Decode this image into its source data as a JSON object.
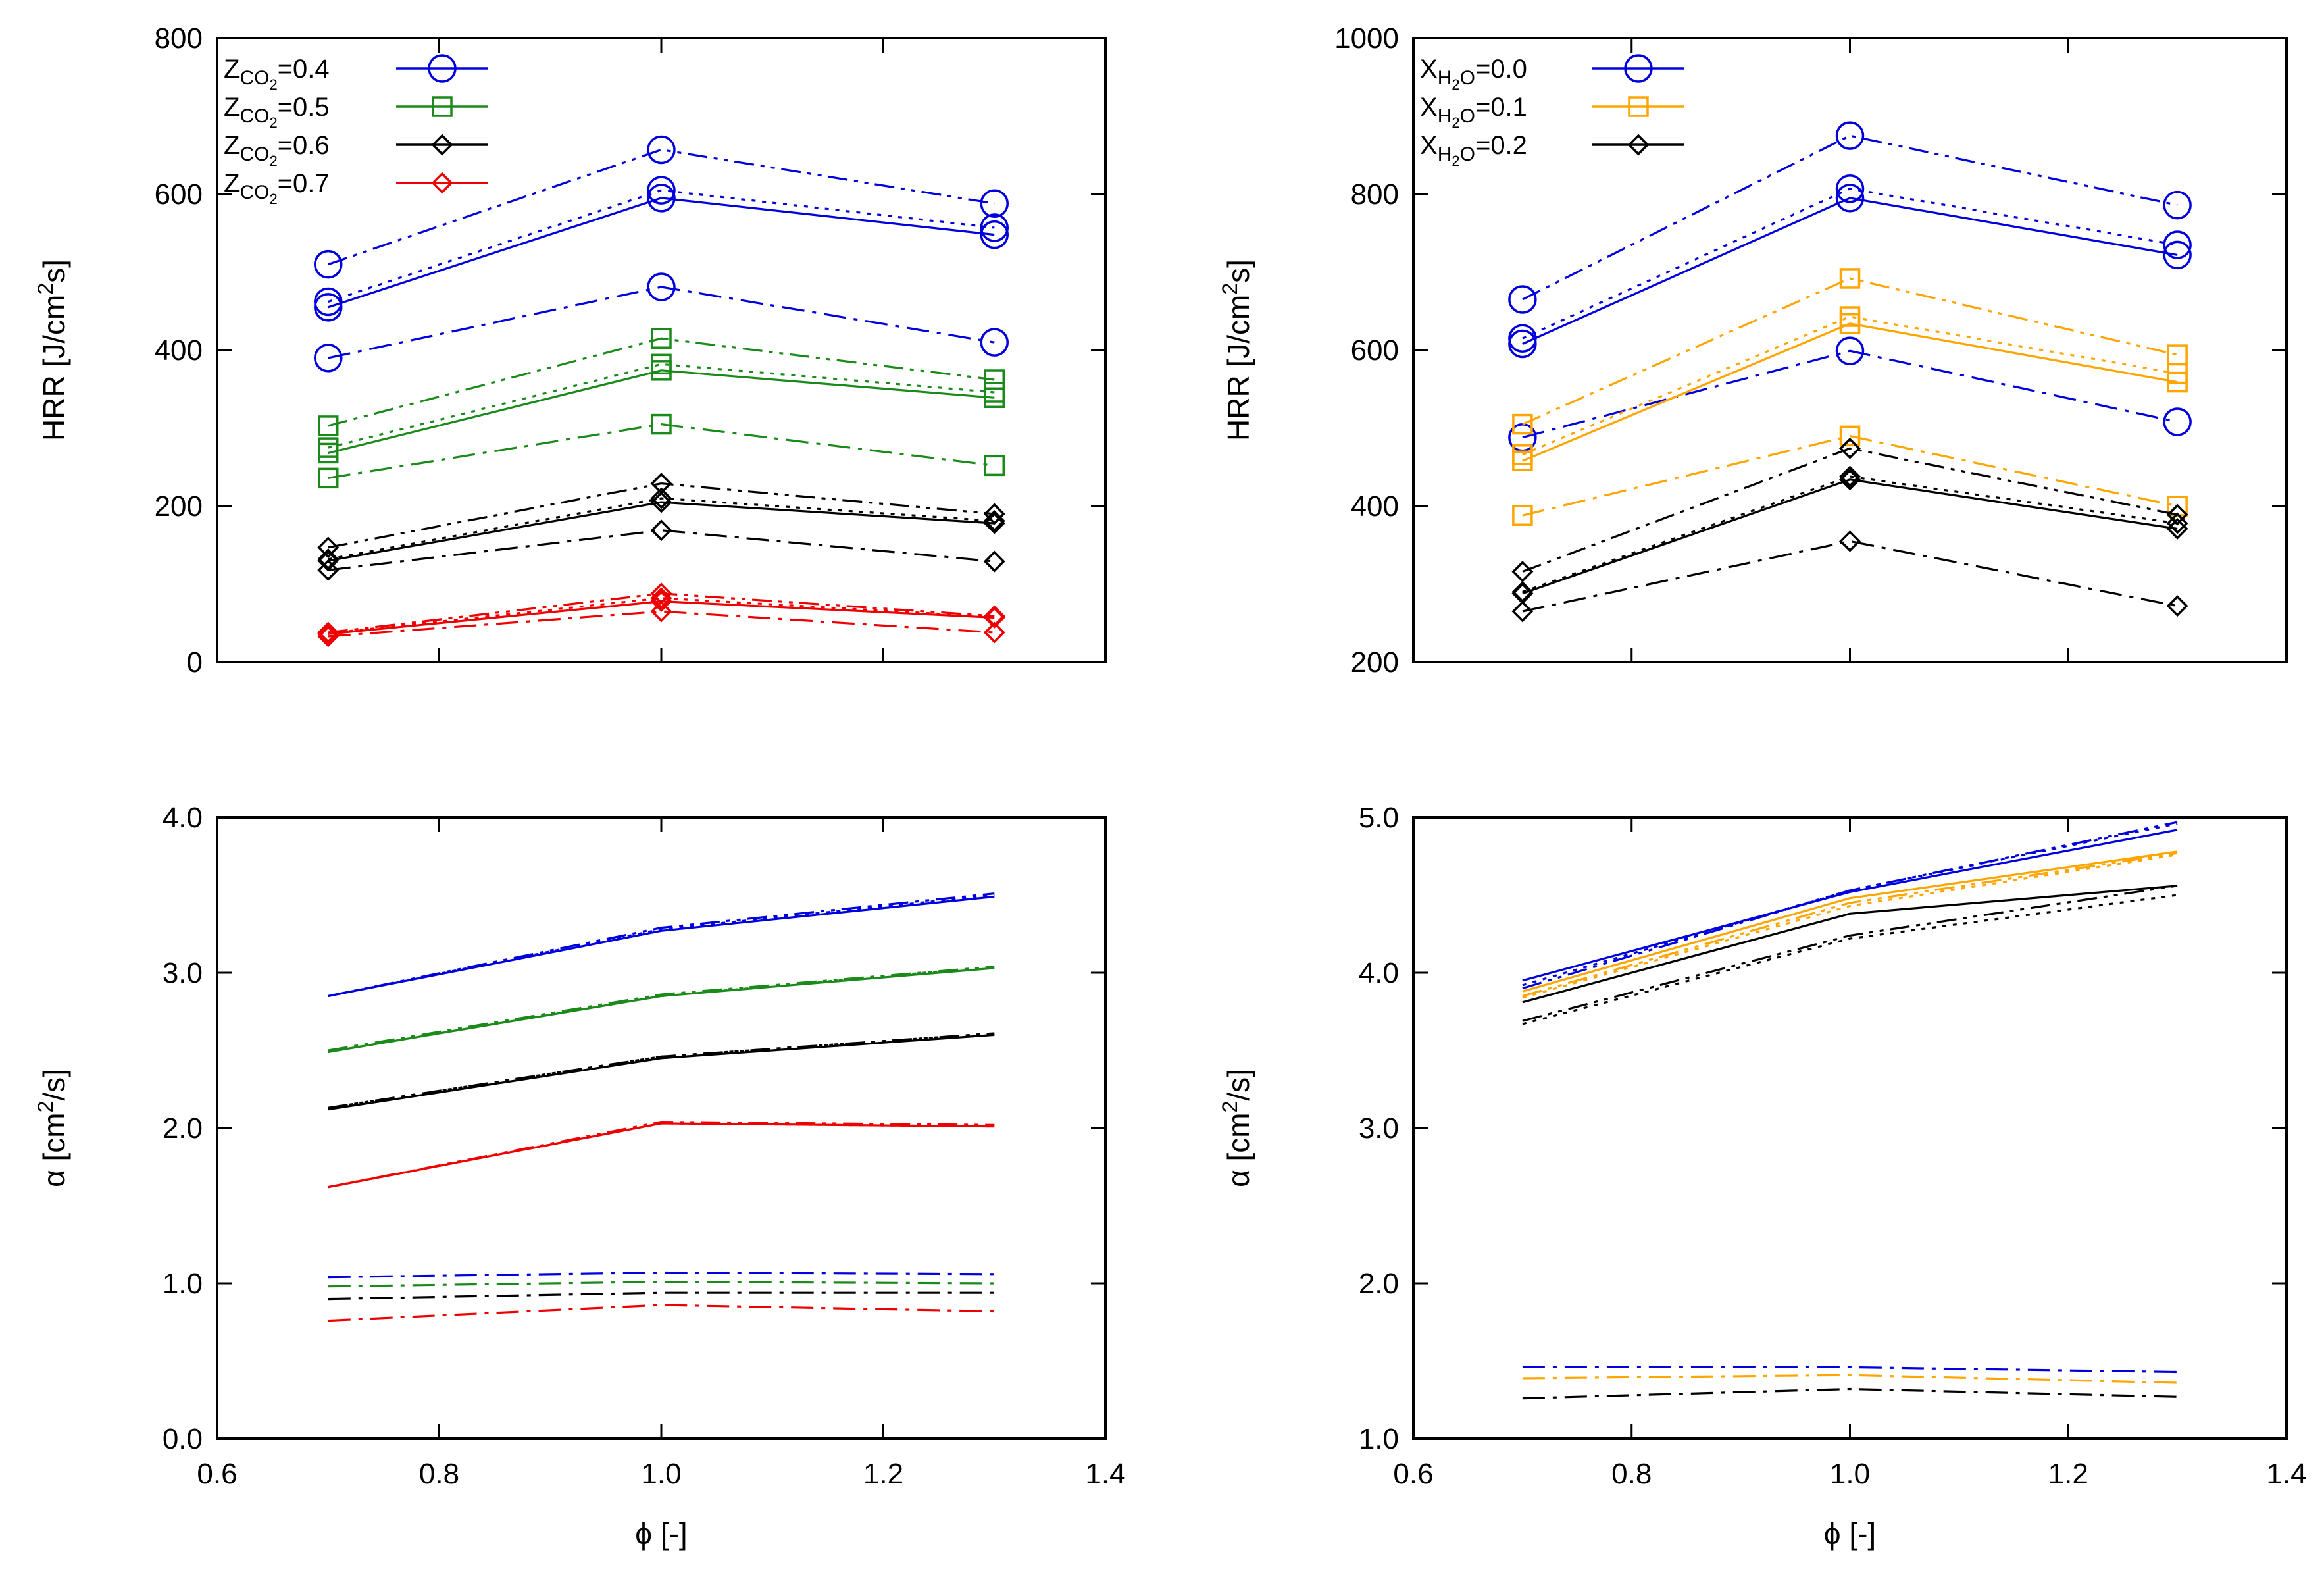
{
  "colors": {
    "blue": "#0000dd",
    "green": "#1a8a1a",
    "black": "#000000",
    "red": "#ee0000",
    "orange": "#ffa500"
  },
  "chart_data": [
    {
      "type": "line",
      "id": "top-left",
      "xlabel": "",
      "ylabel": "HRR [J/cm²s]",
      "ylabel_parts": {
        "base": "HRR [J/cm",
        "sup": "2",
        "tail": "s]"
      },
      "xlim": [
        0.6,
        1.4
      ],
      "ylim": [
        0,
        800
      ],
      "xticks": [
        "0.6",
        "0.8",
        "1.0",
        "1.2",
        "1.4"
      ],
      "yticks": [
        "0",
        "200",
        "400",
        "600",
        "800"
      ],
      "show_x_tick_labels": false,
      "legend": [
        {
          "label": "Z_CO2=0.4",
          "pre": "Z",
          "sub": "CO",
          "subsub": "2",
          "post": "=0.4",
          "color": "blue",
          "marker": "circle"
        },
        {
          "label": "Z_CO2=0.5",
          "pre": "Z",
          "sub": "CO",
          "subsub": "2",
          "post": "=0.5",
          "color": "green",
          "marker": "square"
        },
        {
          "label": "Z_CO2=0.6",
          "pre": "Z",
          "sub": "CO",
          "subsub": "2",
          "post": "=0.6",
          "color": "black",
          "marker": "diamond"
        },
        {
          "label": "Z_CO2=0.7",
          "pre": "Z",
          "sub": "CO",
          "subsub": "2",
          "post": "=0.7",
          "color": "red",
          "marker": "diamond"
        }
      ],
      "x": [
        0.7,
        1.0,
        1.3
      ],
      "series": [
        {
          "name": "Z_CO2=0.4 a",
          "color": "blue",
          "dash": "solid",
          "marker": "circle",
          "values": [
            455,
            595,
            548
          ]
        },
        {
          "name": "Z_CO2=0.4 b",
          "color": "blue",
          "dash": "dot",
          "marker": "circle",
          "values": [
            462,
            605,
            557
          ]
        },
        {
          "name": "Z_CO2=0.4 c",
          "color": "blue",
          "dash": "dashdotdot",
          "marker": "circle",
          "values": [
            510,
            657,
            588
          ]
        },
        {
          "name": "Z_CO2=0.4 d",
          "color": "blue",
          "dash": "dashdot",
          "marker": "circle",
          "values": [
            390,
            481,
            410
          ]
        },
        {
          "name": "Z_CO2=0.5 a",
          "color": "green",
          "dash": "solid",
          "marker": "square",
          "values": [
            268,
            374,
            339
          ]
        },
        {
          "name": "Z_CO2=0.5 b",
          "color": "green",
          "dash": "dot",
          "marker": "square",
          "values": [
            275,
            382,
            346
          ]
        },
        {
          "name": "Z_CO2=0.5 c",
          "color": "green",
          "dash": "dashdotdot",
          "marker": "square",
          "values": [
            303,
            415,
            362
          ]
        },
        {
          "name": "Z_CO2=0.5 d",
          "color": "green",
          "dash": "dashdot",
          "marker": "square",
          "values": [
            236,
            305,
            252
          ]
        },
        {
          "name": "Z_CO2=0.6 a",
          "color": "black",
          "dash": "solid",
          "marker": "diamond",
          "values": [
            130,
            205,
            178
          ]
        },
        {
          "name": "Z_CO2=0.6 b",
          "color": "black",
          "dash": "dot",
          "marker": "diamond",
          "values": [
            132,
            210,
            181
          ]
        },
        {
          "name": "Z_CO2=0.6 c",
          "color": "black",
          "dash": "dashdotdot",
          "marker": "diamond",
          "values": [
            147,
            229,
            190
          ]
        },
        {
          "name": "Z_CO2=0.6 d",
          "color": "black",
          "dash": "dashdot",
          "marker": "diamond",
          "values": [
            118,
            169,
            129
          ]
        },
        {
          "name": "Z_CO2=0.7 a",
          "color": "red",
          "dash": "solid",
          "marker": "diamond",
          "values": [
            36,
            78,
            57
          ]
        },
        {
          "name": "Z_CO2=0.7 b",
          "color": "red",
          "dash": "dot",
          "marker": "diamond",
          "values": [
            37,
            82,
            58
          ]
        },
        {
          "name": "Z_CO2=0.7 c",
          "color": "red",
          "dash": "dashdotdot",
          "marker": "diamond",
          "values": [
            38,
            88,
            59
          ]
        },
        {
          "name": "Z_CO2=0.7 d",
          "color": "red",
          "dash": "dashdot",
          "marker": "diamond",
          "values": [
            33,
            65,
            38
          ]
        }
      ]
    },
    {
      "type": "line",
      "id": "top-right",
      "xlabel": "",
      "ylabel": "HRR [J/cm²s]",
      "ylabel_parts": {
        "base": "HRR [J/cm",
        "sup": "2",
        "tail": "s]"
      },
      "xlim": [
        0.6,
        1.4
      ],
      "ylim": [
        200,
        1000
      ],
      "xticks": [
        "0.6",
        "0.8",
        "1.0",
        "1.2",
        "1.4"
      ],
      "yticks": [
        "200",
        "400",
        "600",
        "800",
        "1000"
      ],
      "show_x_tick_labels": false,
      "legend": [
        {
          "label": "X_H2O=0.0",
          "pre": "X",
          "sub": "H",
          "subsub": "2",
          "subtail": "O",
          "post": "=0.0",
          "color": "blue",
          "marker": "circle"
        },
        {
          "label": "X_H2O=0.1",
          "pre": "X",
          "sub": "H",
          "subsub": "2",
          "subtail": "O",
          "post": "=0.1",
          "color": "orange",
          "marker": "square"
        },
        {
          "label": "X_H2O=0.2",
          "pre": "X",
          "sub": "H",
          "subsub": "2",
          "subtail": "O",
          "post": "=0.2",
          "color": "black",
          "marker": "diamond"
        }
      ],
      "x": [
        0.7,
        1.0,
        1.3
      ],
      "series": [
        {
          "name": "X_H2O=0.0 a",
          "color": "blue",
          "dash": "solid",
          "marker": "circle",
          "values": [
            608,
            795,
            722
          ]
        },
        {
          "name": "X_H2O=0.0 b",
          "color": "blue",
          "dash": "dot",
          "marker": "circle",
          "values": [
            615,
            807,
            735
          ]
        },
        {
          "name": "X_H2O=0.0 c",
          "color": "blue",
          "dash": "dashdotdot",
          "marker": "circle",
          "values": [
            665,
            875,
            786
          ]
        },
        {
          "name": "X_H2O=0.0 d",
          "color": "blue",
          "dash": "dashdot",
          "marker": "circle",
          "values": [
            488,
            599,
            508
          ]
        },
        {
          "name": "X_H2O=0.1 a",
          "color": "orange",
          "dash": "solid",
          "marker": "square",
          "values": [
            458,
            634,
            559
          ]
        },
        {
          "name": "X_H2O=0.1 b",
          "color": "orange",
          "dash": "dot",
          "marker": "square",
          "values": [
            466,
            643,
            570
          ]
        },
        {
          "name": "X_H2O=0.1 c",
          "color": "orange",
          "dash": "dashdotdot",
          "marker": "square",
          "values": [
            505,
            692,
            594
          ]
        },
        {
          "name": "X_H2O=0.1 d",
          "color": "orange",
          "dash": "dashdot",
          "marker": "square",
          "values": [
            388,
            490,
            400
          ]
        },
        {
          "name": "X_H2O=0.2 a",
          "color": "black",
          "dash": "solid",
          "marker": "diamond",
          "values": [
            288,
            434,
            371
          ]
        },
        {
          "name": "X_H2O=0.2 b",
          "color": "black",
          "dash": "dot",
          "marker": "diamond",
          "values": [
            290,
            438,
            378
          ]
        },
        {
          "name": "X_H2O=0.2 c",
          "color": "black",
          "dash": "dashdotdot",
          "marker": "diamond",
          "values": [
            316,
            474,
            389
          ]
        },
        {
          "name": "X_H2O=0.2 d",
          "color": "black",
          "dash": "dashdot",
          "marker": "diamond",
          "values": [
            265,
            355,
            272
          ]
        }
      ]
    },
    {
      "type": "line",
      "id": "bottom-left",
      "xlabel": "ϕ [-]",
      "ylabel": "α [cm²/s]",
      "ylabel_parts": {
        "base": "α [cm",
        "sup": "2",
        "tail": "/s]"
      },
      "xlim": [
        0.6,
        1.4
      ],
      "ylim": [
        0.0,
        4.0
      ],
      "xticks": [
        "0.6",
        "0.8",
        "1.0",
        "1.2",
        "1.4"
      ],
      "yticks": [
        "0.0",
        "1.0",
        "2.0",
        "3.0",
        "4.0"
      ],
      "show_x_tick_labels": true,
      "x": [
        0.7,
        1.0,
        1.3
      ],
      "series": [
        {
          "name": "Z_CO2=0.4 a",
          "color": "blue",
          "dash": "solid",
          "marker": "none",
          "values": [
            2.85,
            3.27,
            3.49
          ]
        },
        {
          "name": "Z_CO2=0.4 b",
          "color": "blue",
          "dash": "dot",
          "marker": "none",
          "values": [
            2.85,
            3.28,
            3.5
          ]
        },
        {
          "name": "Z_CO2=0.4 c",
          "color": "blue",
          "dash": "dashdotdot",
          "marker": "none",
          "values": [
            2.85,
            3.29,
            3.51
          ]
        },
        {
          "name": "Z_CO2=0.4 d",
          "color": "blue",
          "dash": "dashdot",
          "marker": "none",
          "values": [
            1.04,
            1.07,
            1.06
          ]
        },
        {
          "name": "Z_CO2=0.5 a",
          "color": "green",
          "dash": "solid",
          "marker": "none",
          "values": [
            2.49,
            2.85,
            3.03
          ]
        },
        {
          "name": "Z_CO2=0.5 b",
          "color": "green",
          "dash": "dot",
          "marker": "none",
          "values": [
            2.49,
            2.85,
            3.04
          ]
        },
        {
          "name": "Z_CO2=0.5 c",
          "color": "green",
          "dash": "dashdotdot",
          "marker": "none",
          "values": [
            2.5,
            2.86,
            3.04
          ]
        },
        {
          "name": "Z_CO2=0.5 d",
          "color": "green",
          "dash": "dashdot",
          "marker": "none",
          "values": [
            0.98,
            1.01,
            1.0
          ]
        },
        {
          "name": "Z_CO2=0.6 a",
          "color": "black",
          "dash": "solid",
          "marker": "none",
          "values": [
            2.12,
            2.45,
            2.6
          ]
        },
        {
          "name": "Z_CO2=0.6 b",
          "color": "black",
          "dash": "dot",
          "marker": "none",
          "values": [
            2.13,
            2.46,
            2.61
          ]
        },
        {
          "name": "Z_CO2=0.6 c",
          "color": "black",
          "dash": "dashdotdot",
          "marker": "none",
          "values": [
            2.13,
            2.46,
            2.61
          ]
        },
        {
          "name": "Z_CO2=0.6 d",
          "color": "black",
          "dash": "dashdot",
          "marker": "none",
          "values": [
            0.9,
            0.94,
            0.94
          ]
        },
        {
          "name": "Z_CO2=0.7 a",
          "color": "red",
          "dash": "solid",
          "marker": "none",
          "values": [
            1.62,
            2.03,
            2.01
          ]
        },
        {
          "name": "Z_CO2=0.7 b",
          "color": "red",
          "dash": "dot",
          "marker": "none",
          "values": [
            1.62,
            2.03,
            2.01
          ]
        },
        {
          "name": "Z_CO2=0.7 c",
          "color": "red",
          "dash": "dashdotdot",
          "marker": "none",
          "values": [
            1.62,
            2.04,
            2.02
          ]
        },
        {
          "name": "Z_CO2=0.7 d",
          "color": "red",
          "dash": "dashdot",
          "marker": "none",
          "values": [
            0.76,
            0.86,
            0.82
          ]
        }
      ]
    },
    {
      "type": "line",
      "id": "bottom-right",
      "xlabel": "ϕ [-]",
      "ylabel": "α [cm²/s]",
      "ylabel_parts": {
        "base": "α [cm",
        "sup": "2",
        "tail": "/s]"
      },
      "xlim": [
        0.6,
        1.4
      ],
      "ylim": [
        1.0,
        5.0
      ],
      "xticks": [
        "0.6",
        "0.8",
        "1.0",
        "1.2",
        "1.4"
      ],
      "yticks": [
        "1.0",
        "2.0",
        "3.0",
        "4.0",
        "5.0"
      ],
      "show_x_tick_labels": true,
      "x": [
        0.7,
        1.0,
        1.3
      ],
      "series": [
        {
          "name": "X_H2O=0.0 a",
          "color": "blue",
          "dash": "solid",
          "marker": "none",
          "values": [
            3.95,
            4.52,
            4.92
          ]
        },
        {
          "name": "X_H2O=0.0 b",
          "color": "blue",
          "dash": "dot",
          "marker": "none",
          "values": [
            3.92,
            4.53,
            4.96
          ]
        },
        {
          "name": "X_H2O=0.0 c",
          "color": "blue",
          "dash": "dashdotdot",
          "marker": "none",
          "values": [
            3.9,
            4.53,
            4.97
          ]
        },
        {
          "name": "X_H2O=0.0 d",
          "color": "blue",
          "dash": "dashdot",
          "marker": "none",
          "values": [
            1.46,
            1.46,
            1.43
          ]
        },
        {
          "name": "X_H2O=0.1 a",
          "color": "orange",
          "dash": "solid",
          "marker": "none",
          "values": [
            3.88,
            4.48,
            4.78
          ]
        },
        {
          "name": "X_H2O=0.1 b",
          "color": "orange",
          "dash": "dot",
          "marker": "none",
          "values": [
            3.84,
            4.43,
            4.76
          ]
        },
        {
          "name": "X_H2O=0.1 c",
          "color": "orange",
          "dash": "dashdotdot",
          "marker": "none",
          "values": [
            3.85,
            4.45,
            4.77
          ]
        },
        {
          "name": "X_H2O=0.1 d",
          "color": "orange",
          "dash": "dashdot",
          "marker": "none",
          "values": [
            1.39,
            1.41,
            1.36
          ]
        },
        {
          "name": "X_H2O=0.2 a",
          "color": "black",
          "dash": "solid",
          "marker": "none",
          "values": [
            3.81,
            4.38,
            4.56
          ]
        },
        {
          "name": "X_H2O=0.2 b",
          "color": "black",
          "dash": "dot",
          "marker": "none",
          "values": [
            3.67,
            4.22,
            4.5
          ]
        },
        {
          "name": "X_H2O=0.2 c",
          "color": "black",
          "dash": "dashdotdot",
          "marker": "none",
          "values": [
            3.69,
            4.24,
            4.56
          ]
        },
        {
          "name": "X_H2O=0.2 d",
          "color": "black",
          "dash": "dashdot",
          "marker": "none",
          "values": [
            1.26,
            1.32,
            1.27
          ]
        }
      ]
    }
  ]
}
